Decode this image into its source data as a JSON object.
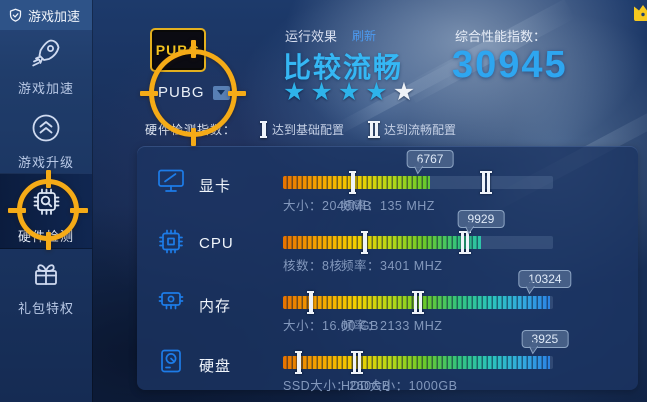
{
  "window": {
    "title": "游戏加速"
  },
  "sidebar": {
    "items": [
      {
        "label": "游戏加速",
        "icon": "rocket-icon",
        "active": false
      },
      {
        "label": "游戏升级",
        "icon": "upgrade-icon",
        "active": false
      },
      {
        "label": "硬件检测",
        "icon": "hardware-scan-icon",
        "active": true
      },
      {
        "label": "礼包特权",
        "icon": "gift-icon",
        "active": false
      }
    ]
  },
  "game": {
    "logo_text": "PUBG",
    "selected": "PUBG"
  },
  "performance": {
    "effect_label": "运行效果",
    "refresh_label": "刷新",
    "effect_value": "比较流畅",
    "stars_filled": 4,
    "stars_total": 5,
    "index_label": "综合性能指数：",
    "index_value": "30945"
  },
  "legend": {
    "title": "硬件检测指数：",
    "basic_label": "达到基础配置",
    "smooth_label": "达到流畅配置"
  },
  "hardware": {
    "rows": [
      {
        "name": "显卡",
        "icon": "gpu-icon",
        "score": "6767",
        "fill_pct": 54.5,
        "badge_pct": 54.5,
        "basic_pct": 26,
        "smooth_pct": 75.2,
        "specs": [
          "大小：2048MB",
          "频率：135 MHZ"
        ]
      },
      {
        "name": "CPU",
        "icon": "cpu-icon",
        "score": "9929",
        "fill_pct": 73.3,
        "badge_pct": 73.3,
        "basic_pct": 30.5,
        "smooth_pct": 67.4,
        "specs": [
          "核数：8核",
          "频率：3401 MHZ"
        ]
      },
      {
        "name": "内存",
        "icon": "ram-icon",
        "score": "10324",
        "fill_pct": 99,
        "badge_pct": 97,
        "basic_pct": 10.4,
        "smooth_pct": 50,
        "specs": [
          "大小：16.00 GB",
          "频率：2133 MHZ"
        ]
      },
      {
        "name": "硬盘",
        "icon": "disk-icon",
        "score": "3925",
        "fill_pct": 99,
        "badge_pct": 97,
        "basic_pct": 6,
        "smooth_pct": 27.4,
        "specs": [
          "SSD大小：260GB",
          "HDD大小：1000GB"
        ]
      }
    ]
  },
  "colors": {
    "accent_blue": "#2ea6f0",
    "effect_cyan": "#35b7f4",
    "annotation_orange": "#f5ab17",
    "bar_gradient_start": "#e67300",
    "bar_gradient_end": "#2b7fe4"
  }
}
